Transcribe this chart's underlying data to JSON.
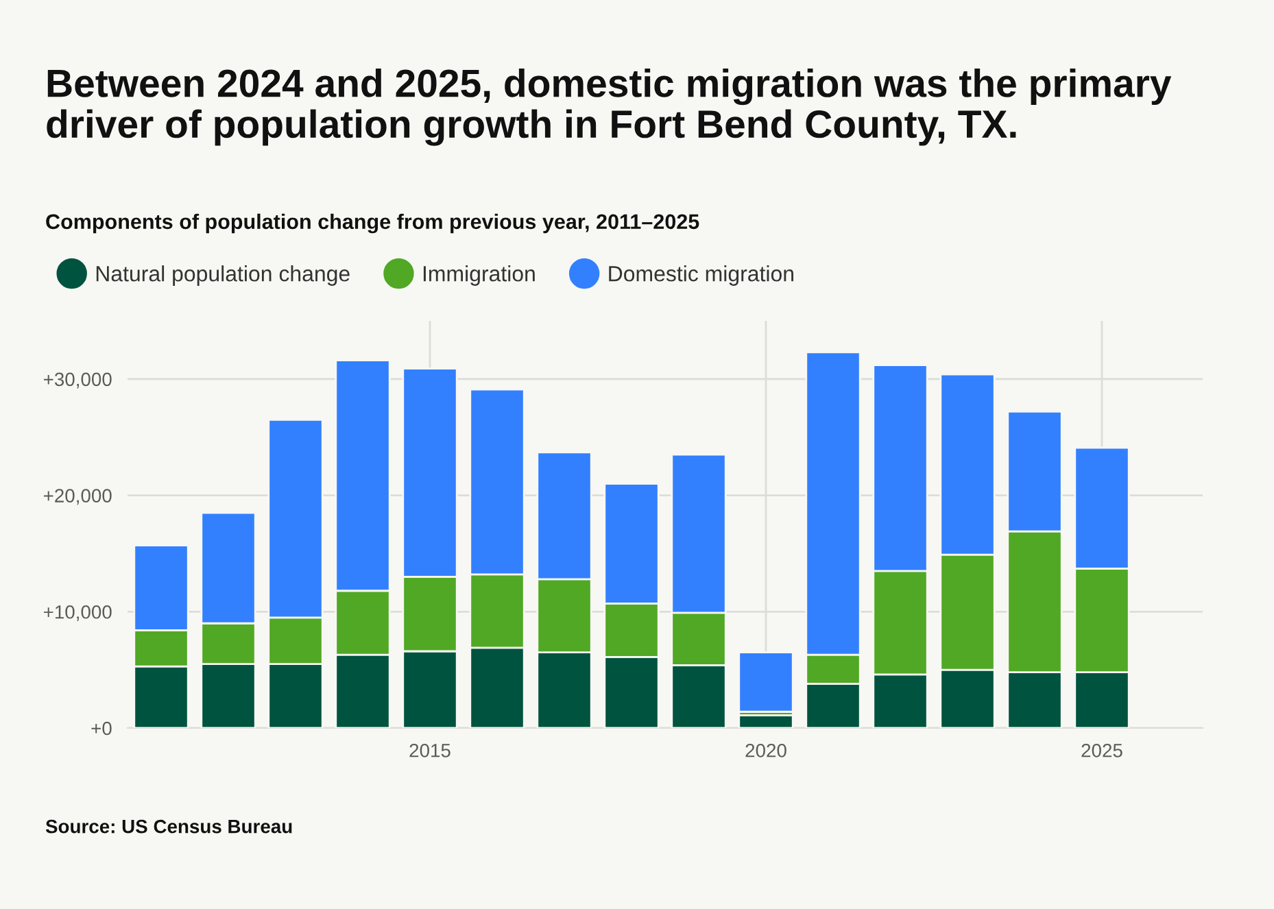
{
  "chart_data": {
    "type": "bar",
    "title": "Between 2024 and 2025, domestic migration was the primary driver of population growth in Fort Bend County, TX.",
    "subtitle": "Components of population change from previous year, 2011–2025",
    "x": [
      2011,
      2012,
      2013,
      2014,
      2015,
      2016,
      2017,
      2018,
      2019,
      2020,
      2021,
      2022,
      2023,
      2024,
      2025
    ],
    "stacked": true,
    "series": [
      {
        "name": "Natural population change",
        "color": "#00533f",
        "values": [
          5300,
          5500,
          5500,
          6300,
          6600,
          6900,
          6500,
          6100,
          5400,
          1100,
          3800,
          4600,
          5000,
          4800,
          4800
        ]
      },
      {
        "name": "Immigration",
        "color": "#50a825",
        "values": [
          3100,
          3500,
          4000,
          5500,
          6400,
          6300,
          6300,
          4600,
          4500,
          300,
          2500,
          8900,
          9900,
          12100,
          8900
        ]
      },
      {
        "name": "Domestic migration",
        "color": "#3380ff",
        "values": [
          7300,
          9500,
          17000,
          19800,
          17900,
          15900,
          10900,
          10300,
          13600,
          5100,
          26000,
          17700,
          15500,
          10300,
          10400
        ]
      }
    ],
    "xlim": [
      2010.5,
      2026.5
    ],
    "xticks": [
      2015,
      2020,
      2025
    ],
    "ylim": [
      0,
      35000
    ],
    "yticks": [
      {
        "value": 0,
        "label": "+0"
      },
      {
        "value": 10000,
        "label": "+10,000"
      },
      {
        "value": 20000,
        "label": "+20,000"
      },
      {
        "value": 30000,
        "label": "+30,000"
      }
    ],
    "grid": true,
    "legend": "top",
    "annotations": [
      "Source: US Census Bureau"
    ]
  }
}
